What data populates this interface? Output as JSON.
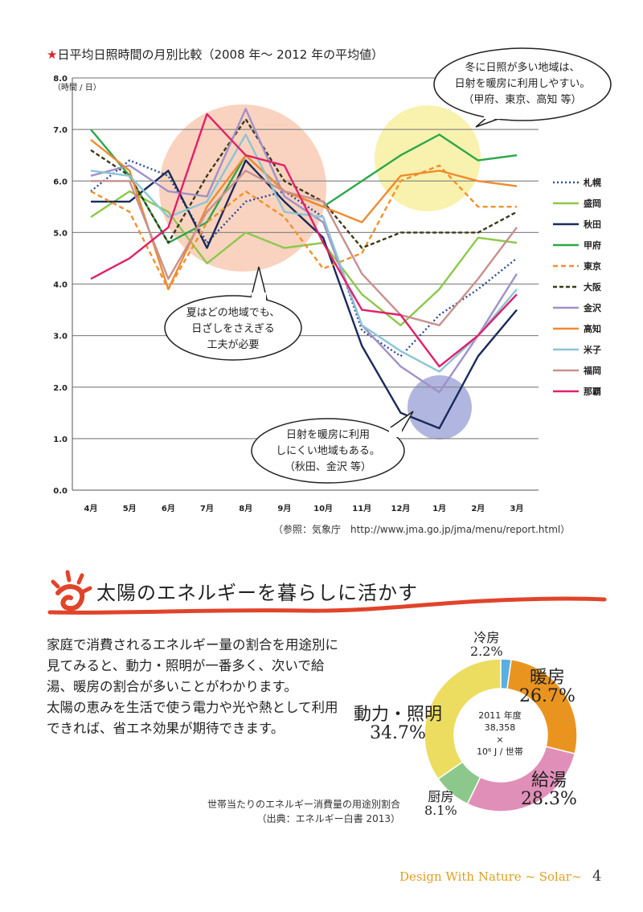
{
  "title_star": "★",
  "title_text": "日平均日照時間の月別比較（2008 年～ 2012 年の平均値）",
  "chart_data": {
    "type": "line",
    "title": "日平均日照時間の月別比較（2008 年～ 2012 年の平均値）",
    "ylabel": "（時間 / 日）",
    "ylim": [
      0,
      8
    ],
    "yticks": [
      "0.0",
      "1.0",
      "2.0",
      "3.0",
      "4.0",
      "5.0",
      "6.0",
      "7.0",
      "8.0"
    ],
    "categories": [
      "4月",
      "5月",
      "6月",
      "7月",
      "8月",
      "9月",
      "10月",
      "11月",
      "12月",
      "1月",
      "2月",
      "3月"
    ],
    "grid": true,
    "legend_position": "right",
    "series": [
      {
        "name": "札幌",
        "color": "#2a4a9a",
        "dash": "2,3",
        "values": [
          5.8,
          6.4,
          6.1,
          4.8,
          5.6,
          5.8,
          5.3,
          3.1,
          2.6,
          3.4,
          3.9,
          4.5
        ]
      },
      {
        "name": "盛岡",
        "color": "#8cc84b",
        "dash": "",
        "values": [
          5.3,
          5.8,
          5.4,
          4.4,
          5.0,
          4.7,
          4.8,
          3.8,
          3.2,
          3.9,
          4.9,
          4.8
        ]
      },
      {
        "name": "秋田",
        "color": "#1a2a5a",
        "dash": "",
        "values": [
          5.6,
          5.6,
          6.2,
          4.7,
          6.4,
          5.6,
          4.9,
          2.8,
          1.5,
          1.2,
          2.6,
          3.5
        ]
      },
      {
        "name": "甲府",
        "color": "#2aa84a",
        "dash": "",
        "values": [
          7.0,
          6.1,
          4.8,
          5.2,
          6.5,
          5.8,
          5.5,
          6.0,
          6.5,
          6.9,
          6.4,
          6.5
        ]
      },
      {
        "name": "東京",
        "color": "#f0902a",
        "dash": "6,4",
        "values": [
          5.8,
          5.4,
          3.9,
          5.2,
          5.8,
          5.3,
          4.3,
          4.6,
          6.0,
          6.3,
          5.5,
          5.5
        ]
      },
      {
        "name": "大阪",
        "color": "#3a3a1a",
        "dash": "5,3",
        "values": [
          6.6,
          6.1,
          4.8,
          6.1,
          7.2,
          6.0,
          5.6,
          4.7,
          5.0,
          5.0,
          5.0,
          5.4
        ]
      },
      {
        "name": "金沢",
        "color": "#a090c8",
        "dash": "",
        "values": [
          6.1,
          6.3,
          5.8,
          5.7,
          7.4,
          5.7,
          5.2,
          3.2,
          2.4,
          1.9,
          3.0,
          4.2
        ]
      },
      {
        "name": "高知",
        "color": "#f08a30",
        "dash": "",
        "values": [
          6.8,
          6.2,
          3.9,
          5.5,
          6.5,
          5.8,
          5.5,
          5.2,
          6.1,
          6.2,
          6.0,
          5.9
        ]
      },
      {
        "name": "米子",
        "color": "#8cc4d4",
        "dash": "",
        "values": [
          6.2,
          6.1,
          5.3,
          5.6,
          6.9,
          5.4,
          5.3,
          3.2,
          2.7,
          2.3,
          3.0,
          3.9
        ]
      },
      {
        "name": "福岡",
        "color": "#c89090",
        "dash": "",
        "values": [
          6.0,
          6.0,
          4.1,
          5.4,
          6.2,
          5.8,
          5.6,
          4.2,
          3.4,
          3.2,
          4.1,
          5.1
        ]
      },
      {
        "name": "那覇",
        "color": "#e0206a",
        "dash": "",
        "values": [
          4.1,
          4.5,
          5.1,
          7.3,
          6.5,
          6.3,
          4.8,
          3.5,
          3.4,
          2.4,
          3.0,
          3.8
        ]
      }
    ],
    "annotations": [
      "冬に日照が多い地域は、",
      "日射を暖房に利用しやすい。",
      "（甲府、東京、高知 等）",
      "夏はどの地域でも、",
      "日ざしをさえぎる",
      "工夫が必要",
      "日射を暖房に利用",
      "しにくい地域もある。",
      "（秋田、金沢 等）"
    ]
  },
  "source": "（参照：気象庁　http://www.jma.go.jp/jma/menu/report.html）",
  "section_title": "太陽のエネルギーを暮らしに活かす",
  "body_paragraph_1": "家庭で消費されるエネルギー量の割合を用途別に見てみると、動力・照明が一番多く、次いで給湯、暖房の割合が多いことがわかります。",
  "body_paragraph_2": "太陽の恵みを生活で使う電力や光や熱として利用できれば、省エネ効果が期待できます。",
  "pie_data": {
    "type": "pie",
    "center_line1": "2011 年度",
    "center_line2": "38,358",
    "center_line3": "×",
    "center_line4": "10⁶ J / 世帯",
    "slices": [
      {
        "name": "冷房",
        "value": 2.2,
        "label": "2.2%",
        "color": "#5aaee0"
      },
      {
        "name": "暖房",
        "value": 26.7,
        "label": "26.7%",
        "color": "#ea9420"
      },
      {
        "name": "給湯",
        "value": 28.3,
        "label": "28.3%",
        "color": "#e090b8"
      },
      {
        "name": "厨房",
        "value": 8.1,
        "label": "8.1%",
        "color": "#8cc88c"
      },
      {
        "name": "動力・照明",
        "value": 34.7,
        "label": "34.7%",
        "color": "#ecdc60"
      }
    ]
  },
  "pie_caption_1": "世帯当たりのエネルギー消費量の用途別割合",
  "pie_caption_2": "（出典：エネルギー白書 2013）",
  "footer": "Design With Nature ~ Solar~",
  "page_number": "4"
}
